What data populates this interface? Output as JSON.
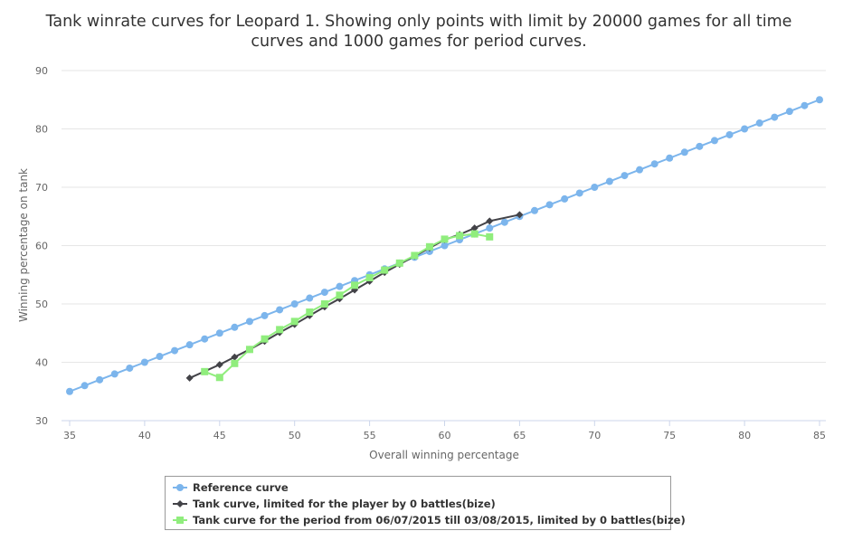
{
  "chart_data": {
    "type": "line",
    "title_lines": [
      "Tank winrate curves for Leopard 1. Showing only points with limit by 20000 games for all time",
      "curves and 1000 games for period curves."
    ],
    "xlabel": "Overall winning percentage",
    "ylabel": "Winning percentage on tank",
    "xlim": [
      35,
      85
    ],
    "ylim": [
      30,
      90
    ],
    "x_ticks": [
      35,
      40,
      45,
      50,
      55,
      60,
      65,
      70,
      75,
      80,
      85
    ],
    "y_ticks": [
      30,
      40,
      50,
      60,
      70,
      80,
      90
    ],
    "grid": true,
    "legend_position": "bottom-center",
    "series": [
      {
        "name": "Reference curve",
        "color": "#7cb5ec",
        "marker": "circle",
        "points": [
          [
            35,
            35
          ],
          [
            36,
            36
          ],
          [
            37,
            37
          ],
          [
            38,
            38
          ],
          [
            39,
            39
          ],
          [
            40,
            40
          ],
          [
            41,
            41
          ],
          [
            42,
            42
          ],
          [
            43,
            43
          ],
          [
            44,
            44
          ],
          [
            45,
            45
          ],
          [
            46,
            46
          ],
          [
            47,
            47
          ],
          [
            48,
            48
          ],
          [
            49,
            49
          ],
          [
            50,
            50
          ],
          [
            51,
            51
          ],
          [
            52,
            52
          ],
          [
            53,
            53
          ],
          [
            54,
            54
          ],
          [
            55,
            55
          ],
          [
            56,
            56
          ],
          [
            57,
            57
          ],
          [
            58,
            58
          ],
          [
            59,
            59
          ],
          [
            60,
            60
          ],
          [
            61,
            61
          ],
          [
            62,
            62
          ],
          [
            63,
            63
          ],
          [
            64,
            64
          ],
          [
            65,
            65
          ],
          [
            66,
            66
          ],
          [
            67,
            67
          ],
          [
            68,
            68
          ],
          [
            69,
            69
          ],
          [
            70,
            70
          ],
          [
            71,
            71
          ],
          [
            72,
            72
          ],
          [
            73,
            73
          ],
          [
            74,
            74
          ],
          [
            75,
            75
          ],
          [
            76,
            76
          ],
          [
            77,
            77
          ],
          [
            78,
            78
          ],
          [
            79,
            79
          ],
          [
            80,
            80
          ],
          [
            81,
            81
          ],
          [
            82,
            82
          ],
          [
            83,
            83
          ],
          [
            84,
            84
          ],
          [
            85,
            85
          ]
        ]
      },
      {
        "name": "Tank curve, limited for the player by 0 battles(bize)",
        "color": "#434348",
        "marker": "diamond",
        "points": [
          [
            43,
            37.3
          ],
          [
            45,
            39.6
          ],
          [
            46,
            40.9
          ],
          [
            47,
            42.2
          ],
          [
            48,
            43.6
          ],
          [
            49,
            45.1
          ],
          [
            50,
            46.5
          ],
          [
            51,
            48.0
          ],
          [
            52,
            49.5
          ],
          [
            53,
            50.9
          ],
          [
            54,
            52.4
          ],
          [
            55,
            53.9
          ],
          [
            56,
            55.4
          ],
          [
            57,
            56.8
          ],
          [
            58,
            58.2
          ],
          [
            59,
            59.6
          ],
          [
            60,
            61.0
          ],
          [
            61,
            61.9
          ],
          [
            62,
            63.0
          ],
          [
            63,
            64.2
          ],
          [
            65,
            65.3
          ]
        ]
      },
      {
        "name": "Tank curve for the period from 06/07/2015 till 03/08/2015, limited by 0 battles(bize)",
        "color": "#90ed7d",
        "marker": "square",
        "points": [
          [
            44,
            38.4
          ],
          [
            45,
            37.4
          ],
          [
            46,
            39.8
          ],
          [
            47,
            42.2
          ],
          [
            48,
            44.0
          ],
          [
            49,
            45.6
          ],
          [
            50,
            47.0
          ],
          [
            51,
            48.6
          ],
          [
            52,
            50.0
          ],
          [
            53,
            51.5
          ],
          [
            54,
            53.2
          ],
          [
            55,
            54.5
          ],
          [
            56,
            55.8
          ],
          [
            57,
            57.0
          ],
          [
            58,
            58.3
          ],
          [
            59,
            59.8
          ],
          [
            60,
            61.1
          ],
          [
            61,
            61.7
          ],
          [
            62,
            62.0
          ],
          [
            63,
            61.5
          ]
        ]
      }
    ]
  }
}
